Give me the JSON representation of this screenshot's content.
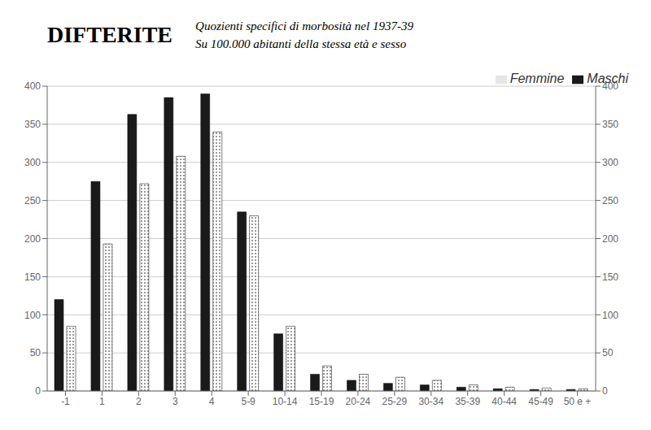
{
  "chart_data": {
    "type": "bar",
    "title": "DIFTERITE",
    "subtitle": [
      "Quozienti specifici di morbosità nel 1937-39",
      "Su 100.000 abitanti della stessa età e sesso"
    ],
    "categories": [
      "-1",
      "1",
      "2",
      "3",
      "4",
      "5-9",
      "10-14",
      "15-19",
      "20-24",
      "25-29",
      "30-34",
      "35-39",
      "40-44",
      "45-49",
      "50 e +"
    ],
    "series": [
      {
        "name": "Maschi",
        "color": "#1a1a1a",
        "values": [
          120,
          275,
          363,
          385,
          390,
          235,
          75,
          22,
          14,
          10,
          8,
          5,
          3,
          2,
          2
        ]
      },
      {
        "name": "Femmine",
        "color": "#ffffff",
        "values": [
          85,
          193,
          272,
          308,
          340,
          230,
          85,
          33,
          22,
          18,
          14,
          8,
          5,
          4,
          3
        ]
      }
    ],
    "ylim": [
      0,
      400
    ],
    "yticks": [
      0,
      50,
      100,
      150,
      200,
      250,
      300,
      350,
      400
    ],
    "y2lim": [
      0,
      400
    ],
    "y2ticks": [
      0,
      50,
      100,
      150,
      200,
      250,
      300,
      350,
      400
    ],
    "grid": true,
    "legend": "upper right"
  }
}
